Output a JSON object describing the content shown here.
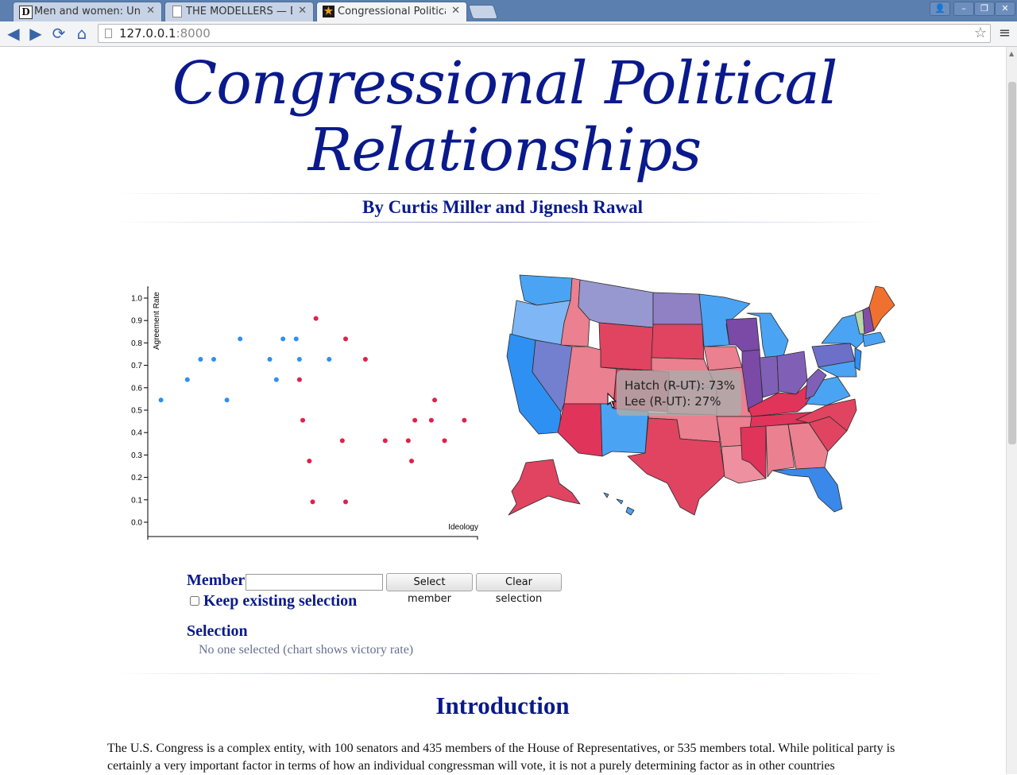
{
  "browser": {
    "tabs": [
      {
        "icon": "D",
        "title": "Men and women: Unc",
        "active": false
      },
      {
        "icon": "page-icon",
        "title": "THE MODELLERS — D",
        "active": false
      },
      {
        "icon": "star-icon",
        "title": "Congressional Politica",
        "active": true
      }
    ],
    "url_host": "127.0.0.1",
    "url_port": ":8000"
  },
  "header": {
    "title_line1": "Congressional Political",
    "title_line2": "Relationships",
    "byline": "By Curtis Miller and Jignesh Rawal"
  },
  "colors": {
    "heading": "#0a1a8c",
    "democrat": "#2f90f0",
    "republican": "#e0204a"
  },
  "chart_data": {
    "type": "scatter",
    "title": "",
    "xlabel": "Ideology",
    "ylabel": "Agreement Rate",
    "ylim": [
      0,
      1.0
    ],
    "xlim": [
      0,
      1
    ],
    "y_ticks": [
      "0.0",
      "0.1",
      "0.2",
      "0.3",
      "0.4",
      "0.5",
      "0.6",
      "0.7",
      "0.8",
      "0.9",
      "1.0"
    ],
    "x_ticks": [],
    "grid": false,
    "series": [
      {
        "party": "D",
        "color": "#2f90f0",
        "points": [
          [
            0.04,
            0.545
          ],
          [
            0.12,
            0.636
          ],
          [
            0.16,
            0.727
          ],
          [
            0.2,
            0.727
          ],
          [
            0.24,
            0.545
          ],
          [
            0.28,
            0.818
          ],
          [
            0.37,
            0.727
          ],
          [
            0.39,
            0.636
          ],
          [
            0.41,
            0.818
          ],
          [
            0.45,
            0.818
          ],
          [
            0.46,
            0.727
          ],
          [
            0.55,
            0.727
          ]
        ]
      },
      {
        "party": "R",
        "color": "#e0204a",
        "points": [
          [
            0.46,
            0.636
          ],
          [
            0.47,
            0.455
          ],
          [
            0.49,
            0.273
          ],
          [
            0.5,
            0.091
          ],
          [
            0.51,
            0.909
          ],
          [
            0.59,
            0.364
          ],
          [
            0.6,
            0.091
          ],
          [
            0.6,
            0.818
          ],
          [
            0.66,
            0.727
          ],
          [
            0.72,
            0.364
          ],
          [
            0.79,
            0.364
          ],
          [
            0.8,
            0.273
          ],
          [
            0.81,
            0.455
          ],
          [
            0.86,
            0.455
          ],
          [
            0.87,
            0.545
          ],
          [
            0.9,
            0.364
          ],
          [
            0.96,
            0.455
          ]
        ]
      }
    ]
  },
  "map": {
    "tooltip_line1": "Hatch (R-UT): 73%",
    "tooltip_line2": "Lee (R-UT): 27%"
  },
  "controls": {
    "member_label": "Member:",
    "member_value": "",
    "select_button": "Select member",
    "clear_button": "Clear selection",
    "keep_label": "Keep existing selection",
    "keep_checked": false,
    "selection_heading": "Selection",
    "selection_empty": "No one selected (chart shows victory rate)"
  },
  "intro": {
    "heading": "Introduction",
    "text": "The U.S. Congress is a complex entity, with 100 senators and 435 members of the House of Representatives, or 535 members total. While political party is certainly a very important factor in terms of how an individual congressman will vote, it is not a purely determining factor as in other countries"
  }
}
